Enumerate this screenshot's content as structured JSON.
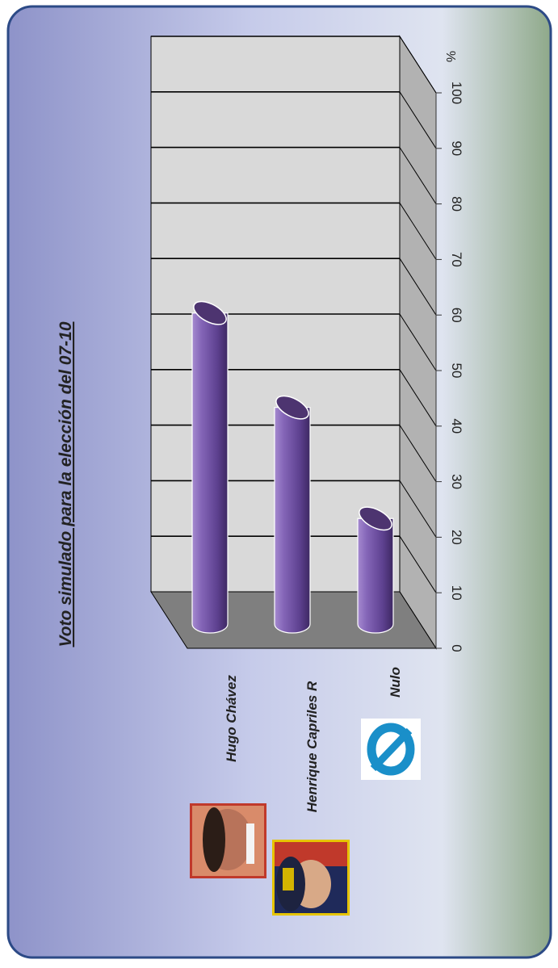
{
  "chart_data": {
    "type": "bar",
    "orientation": "rotated-90-clockwise",
    "style": "3d-cylinder",
    "title": "Voto simulado para la elección del 07-10",
    "unit_label": "%",
    "categories": [
      "Hugo Chávez",
      "Henrique Capriles R",
      "Nulo"
    ],
    "values": [
      56,
      39,
      19
    ],
    "ylim": [
      0,
      100
    ],
    "yticks": [
      0,
      10,
      20,
      30,
      40,
      50,
      60,
      70,
      80,
      90,
      100
    ],
    "grid": true,
    "legend": "none"
  },
  "colors": {
    "bar": "#7b5ca8",
    "bar_dark": "#4d3470",
    "wall": "#d9d9d9",
    "floor": "#7f7f7f",
    "frame": "#3b5998",
    "nulo_icon": "#1a8fc9"
  },
  "icons": [
    "chavez-photo",
    "capriles-photo",
    "null-symbol-icon"
  ]
}
